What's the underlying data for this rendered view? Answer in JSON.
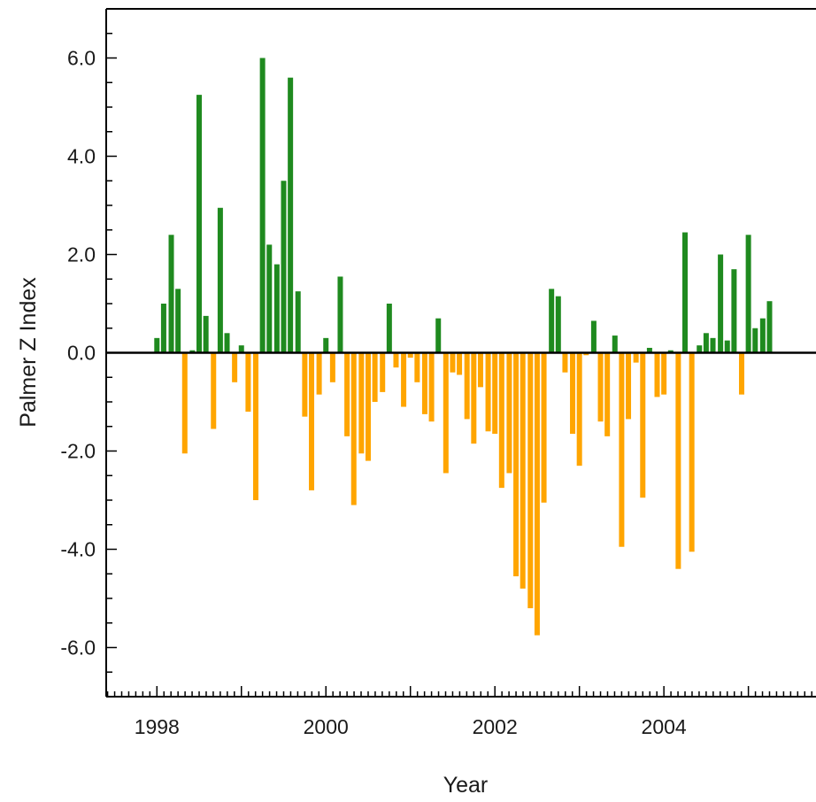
{
  "chart_data": {
    "type": "bar",
    "xlabel": "Year",
    "ylabel": "Palmer Z Index",
    "ylim": [
      -7,
      7
    ],
    "xlim": [
      1997.4,
      2005.8
    ],
    "x_ticks": [
      1998,
      2000,
      2002,
      2004
    ],
    "x_tick_labels": [
      "1998",
      "2000",
      "2002",
      "2004"
    ],
    "y_ticks": [
      6,
      4,
      2,
      0,
      -2,
      -4,
      -6
    ],
    "y_tick_labels": [
      "6.0",
      "4.0",
      "2.0",
      "0.0",
      "-2.0",
      "-4.0",
      "-6.0"
    ],
    "zero_line": true,
    "colors": {
      "positive": "#1f8a1f",
      "negative": "#ffa500",
      "axis": "#000000"
    },
    "series": [
      {
        "x": [
          1998.0,
          1998.08,
          1998.17,
          1998.25,
          1998.33,
          1998.42,
          1998.5,
          1998.58,
          1998.67,
          1998.75,
          1998.83,
          1998.92,
          1999.0,
          1999.08,
          1999.17,
          1999.25,
          1999.33,
          1999.42,
          1999.5,
          1999.58,
          1999.67,
          1999.75,
          1999.83,
          1999.92,
          2000.0,
          2000.08,
          2000.17,
          2000.25,
          2000.33,
          2000.42,
          2000.5,
          2000.58,
          2000.67,
          2000.75,
          2000.83,
          2000.92,
          2001.0,
          2001.08,
          2001.17,
          2001.25,
          2001.33,
          2001.42,
          2001.5,
          2001.58,
          2001.67,
          2001.75,
          2001.83,
          2001.92,
          2002.0,
          2002.08,
          2002.17,
          2002.25,
          2002.33,
          2002.42,
          2002.5,
          2002.58,
          2002.67,
          2002.75,
          2002.83,
          2002.92,
          2003.0,
          2003.08,
          2003.17,
          2003.25,
          2003.33,
          2003.42,
          2003.5,
          2003.58,
          2003.67,
          2003.75,
          2003.83,
          2003.92,
          2004.0,
          2004.08,
          2004.17,
          2004.25,
          2004.33,
          2004.42,
          2004.5,
          2004.58,
          2004.67,
          2004.75,
          2004.83,
          2004.92,
          2005.0,
          2005.08,
          2005.17,
          2005.25
        ],
        "values": [
          0.3,
          1.0,
          2.4,
          1.3,
          -2.05,
          0.05,
          5.25,
          0.75,
          -1.55,
          2.95,
          0.4,
          -0.6,
          0.15,
          -1.2,
          -3.0,
          6.0,
          2.2,
          1.8,
          3.5,
          5.6,
          1.25,
          -1.3,
          -2.8,
          -0.85,
          0.3,
          -0.6,
          1.55,
          -1.7,
          -3.1,
          -2.05,
          -2.2,
          -1.0,
          -0.8,
          1.0,
          -0.3,
          -1.1,
          -0.1,
          -0.6,
          -1.25,
          -1.4,
          0.7,
          -2.45,
          -0.4,
          -0.45,
          -1.35,
          -1.85,
          -0.7,
          -1.6,
          -1.65,
          -2.75,
          -2.45,
          -4.55,
          -4.8,
          -5.2,
          -5.75,
          -3.05,
          1.3,
          1.15,
          -0.4,
          -1.65,
          -2.3,
          -0.05,
          0.65,
          -1.4,
          -1.7,
          0.35,
          -3.95,
          -1.35,
          -0.2,
          -2.95,
          0.1,
          -0.9,
          -0.85,
          0.05,
          -4.4,
          2.45,
          -4.05,
          0.15,
          0.4,
          0.3,
          2.0,
          0.25,
          1.7,
          -0.85,
          2.4,
          0.5,
          0.7,
          1.05
        ]
      }
    ]
  }
}
